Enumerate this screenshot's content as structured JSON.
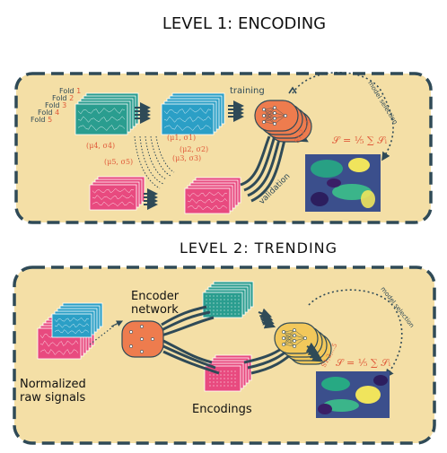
{
  "level1": {
    "title": "LEVEL 1: ENCODING",
    "folds": [
      {
        "word": "Fold",
        "num": "1"
      },
      {
        "word": "Fold",
        "num": "2"
      },
      {
        "word": "Fold",
        "num": "3"
      },
      {
        "word": "Fold",
        "num": "4"
      },
      {
        "word": "Fold",
        "num": "5"
      }
    ],
    "training_label": "training",
    "validation_label": "validation",
    "model_selection_label": "model selection",
    "params": [
      "(μ1, σ1)",
      "(μ4, σ4)",
      "(μ2, σ2)",
      "(μ3, σ3)",
      "(μ5, σ5)"
    ],
    "score_label": "S1,2,...5",
    "formula": "𝒮 = ¹⁄₅ ∑ 𝒮ᵢ"
  },
  "level2": {
    "title": "LEVEL 2: TRENDING",
    "encoder_network_label": [
      "Encoder",
      "network"
    ],
    "normalized_label": [
      "Normalized",
      "raw signals"
    ],
    "encodings_label": "Encodings",
    "model_selection_label": "model selection",
    "score_label": "S1,2,...5",
    "formula": "𝒮 = ¹⁄₅ ∑ 𝒮ᵢ"
  },
  "colors": {
    "panel_bg": "#f4dfa6",
    "panel_border": "#2f4a57",
    "teal": "#2a9d8f",
    "blue": "#2b9fc6",
    "pink": "#e84a7f",
    "orange_net": "#ee7c4e",
    "yellow_net": "#f2c85b",
    "red_text": "#e05a3a",
    "dark": "#2f4a57"
  }
}
